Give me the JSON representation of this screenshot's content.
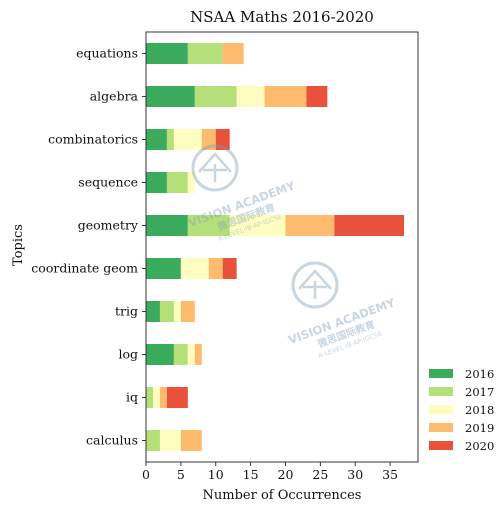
{
  "chart_data": {
    "type": "bar",
    "orientation": "horizontal",
    "stacked": true,
    "title": "NSAA Maths 2016-2020",
    "xlabel": "Number of Occurrences",
    "ylabel": "Topics",
    "xlim": [
      0,
      39
    ],
    "x_ticks": [
      0,
      5,
      10,
      15,
      20,
      25,
      30,
      35
    ],
    "categories": [
      "equations",
      "algebra",
      "combinatorics",
      "sequence",
      "geometry",
      "coordinate geom",
      "trig",
      "log",
      "iq",
      "calculus"
    ],
    "series": [
      {
        "name": "2016",
        "color": "#3aaa5c",
        "values": [
          6,
          7,
          3,
          3,
          6,
          5,
          2,
          4,
          0,
          0
        ]
      },
      {
        "name": "2017",
        "color": "#b5df78",
        "values": [
          5,
          6,
          1,
          3,
          6,
          0,
          2,
          2,
          1,
          2
        ]
      },
      {
        "name": "2018",
        "color": "#fdfdc0",
        "values": [
          0,
          4,
          4,
          1,
          8,
          4,
          1,
          1,
          1,
          3
        ]
      },
      {
        "name": "2019",
        "color": "#fdbb6d",
        "values": [
          3,
          6,
          2,
          0,
          7,
          2,
          2,
          1,
          1,
          3
        ]
      },
      {
        "name": "2020",
        "color": "#e9523a",
        "values": [
          0,
          3,
          2,
          0,
          10,
          2,
          0,
          0,
          3,
          0
        ]
      }
    ],
    "grid": false,
    "legend_position": "bottom-right"
  },
  "watermark": {
    "line1": "VISION ACADEMY",
    "line2": "微思国际教育",
    "line3": "A-LEVEL·IB·AP·IGCSE"
  }
}
